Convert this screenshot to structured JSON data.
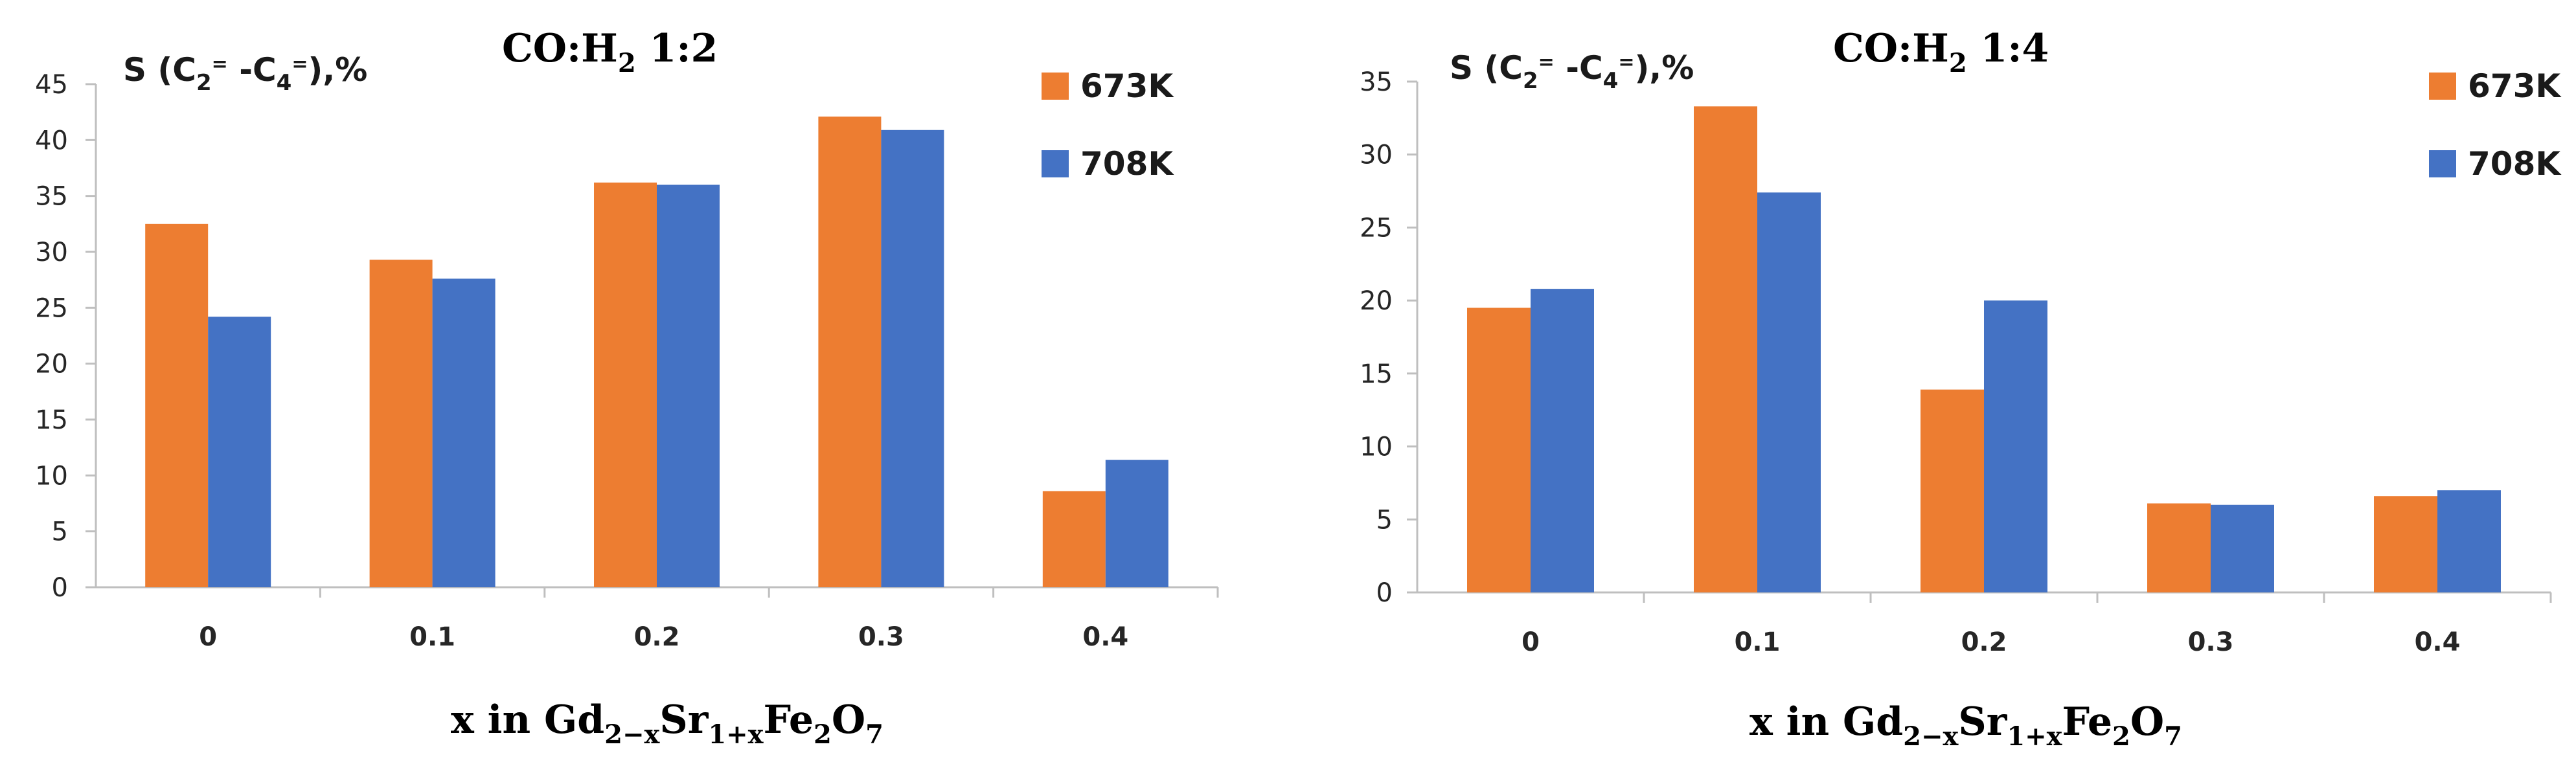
{
  "colors": {
    "s673": "#ED7D31",
    "s708": "#4472C4"
  },
  "chart_data": [
    {
      "type": "bar",
      "title_main": "CO:H",
      "title_sub": "2",
      "title_rest": " 1:2",
      "ylabel_parts": {
        "s": "S (C",
        "sub1": "2",
        "sup1": "=",
        "mid": " -C",
        "sub2": "4",
        "sup2": "=",
        "end": "),%"
      },
      "xlabel_parts": {
        "a": "x in Gd",
        "sub1": "2−x",
        "b": "Sr",
        "sub2": "1+x",
        "c": "Fe",
        "sub3": "2",
        "d": "O",
        "sub4": "7"
      },
      "categories": [
        "0",
        "0.1",
        "0.2",
        "0.3",
        "0.4"
      ],
      "series": [
        {
          "name": "673K",
          "values": [
            32.5,
            29.3,
            36.2,
            42.1,
            8.6
          ]
        },
        {
          "name": "708K",
          "values": [
            24.2,
            27.6,
            36.0,
            40.9,
            11.4
          ]
        }
      ],
      "ylim": [
        0,
        45
      ],
      "yticks": [
        "0",
        "5",
        "10",
        "15",
        "20",
        "25",
        "30",
        "35",
        "40",
        "45"
      ],
      "grid": false,
      "legend": "top-right"
    },
    {
      "type": "bar",
      "title_main": "CO:H",
      "title_sub": "2",
      "title_rest": " 1:4",
      "ylabel_parts": {
        "s": "S (C",
        "sub1": "2",
        "sup1": "=",
        "mid": " -C",
        "sub2": "4",
        "sup2": "=",
        "end": "),%"
      },
      "xlabel_parts": {
        "a": "x in Gd",
        "sub1": "2−x",
        "b": "Sr",
        "sub2": "1+x",
        "c": "Fe",
        "sub3": "2",
        "d": "O",
        "sub4": "7"
      },
      "categories": [
        "0",
        "0.1",
        "0.2",
        "0.3",
        "0.4"
      ],
      "series": [
        {
          "name": "673K",
          "values": [
            19.5,
            33.3,
            13.9,
            6.1,
            6.6
          ]
        },
        {
          "name": "708K",
          "values": [
            20.8,
            27.4,
            20.0,
            6.0,
            7.0
          ]
        }
      ],
      "ylim": [
        0,
        35
      ],
      "yticks": [
        "0",
        "5",
        "10",
        "15",
        "20",
        "25",
        "30",
        "35"
      ],
      "grid": false,
      "legend": "top-right"
    }
  ]
}
